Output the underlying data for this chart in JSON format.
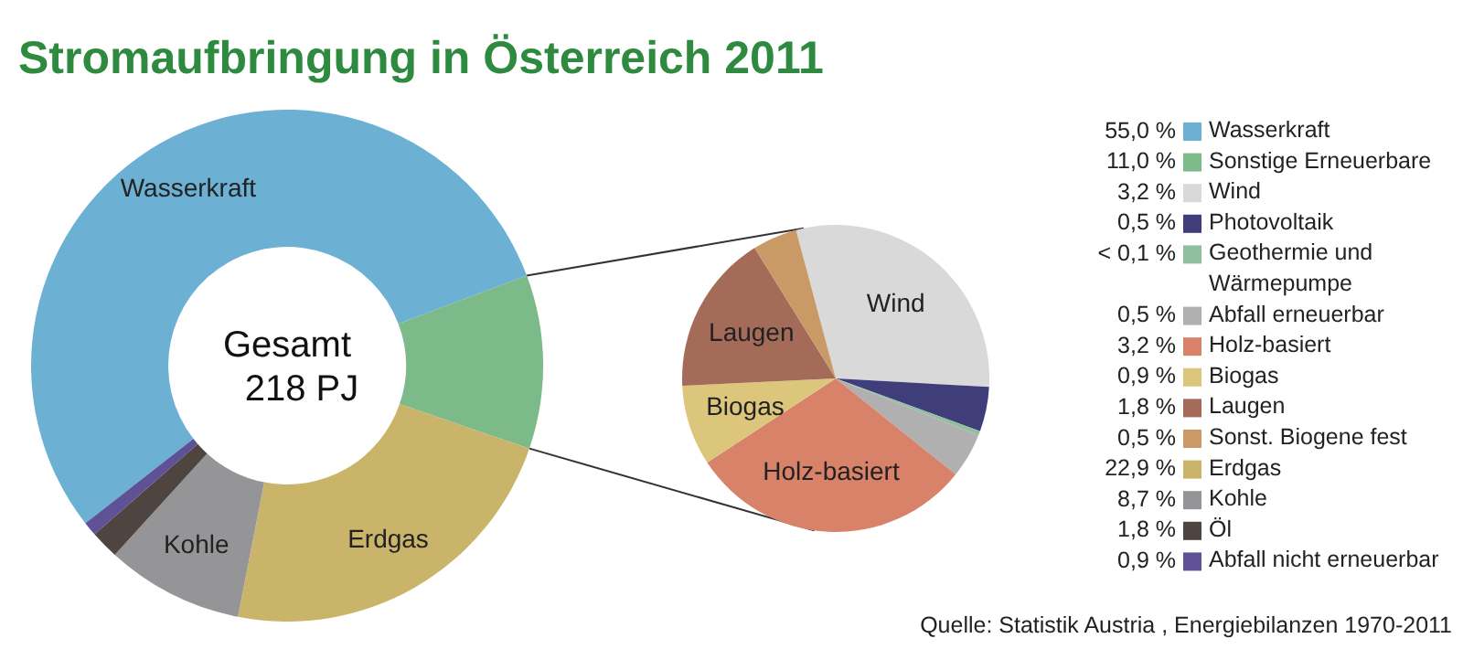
{
  "chart_data": [
    {
      "type": "donut",
      "title": "Stromaufbringung in Österreich 2011",
      "categories": [
        "Wasserkraft",
        "Sonstige Erneuerbare",
        "Erdgas",
        "Kohle",
        "Öl",
        "Abfall nicht erneuerbar"
      ],
      "values": [
        55.0,
        11.0,
        22.9,
        8.7,
        1.8,
        0.9
      ],
      "value_labels": [
        "55,0 %",
        "11,0 %",
        "22,9 %",
        "8,7 %",
        "1,8 %",
        "0,9 %"
      ],
      "colors": [
        "#6cb0d4",
        "#7dba8a",
        "#c9b46a",
        "#959597",
        "#4f4540",
        "#5e5196"
      ],
      "annotations": [
        "Gesamt 218 PJ",
        "Quelle: Statistik Austria , Energiebilanzen 1970-2011"
      ],
      "legend": "right"
    },
    {
      "type": "pie",
      "categories": [
        "Wind",
        "Photovoltaik",
        "Geothermie und Wärmepumpe",
        "Abfall erneuerbar",
        "Holz-basiert",
        "Biogas",
        "Laugen",
        "Sonst. Biogene fest"
      ],
      "values": [
        3.2,
        0.5,
        0.05,
        0.5,
        3.2,
        0.9,
        1.8,
        0.5
      ],
      "value_labels": [
        "3,2 %",
        "0,5 %",
        "< 0,1 %",
        "0,5 %",
        "3,2 %",
        "0,9 %",
        "1,8 %",
        "0,5 %"
      ],
      "colors": [
        "#d9d9d9",
        "#3f3d7a",
        "#8fbf9f",
        "#b0b0b0",
        "#d9826a",
        "#dcc67c",
        "#a36b58",
        "#c99a66"
      ],
      "legend": "right"
    }
  ]
}
